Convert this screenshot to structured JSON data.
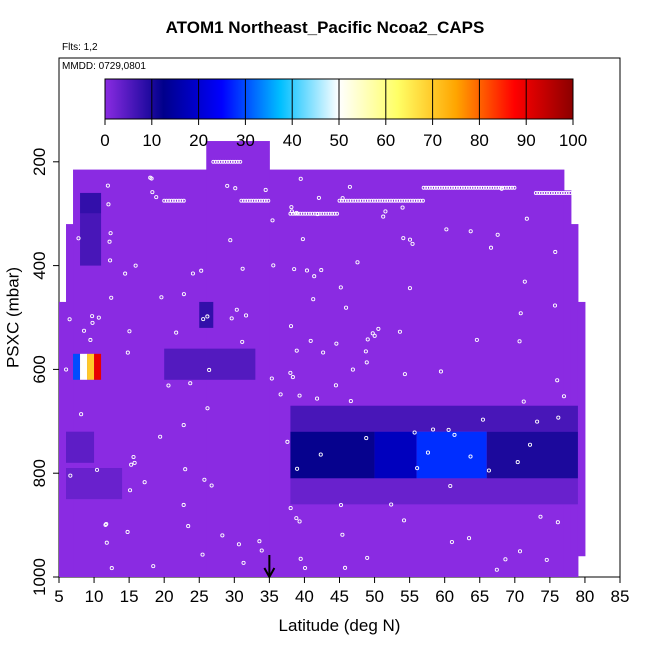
{
  "chart_data": {
    "type": "heatmap",
    "title": "ATOM1 Northeast_Pacific Ncoa2_CAPS",
    "flights_label": "Flts: 1,2",
    "dates_label": "MMDD: 0729,0801",
    "xlabel": "Latitude (deg N)",
    "ylabel": "PSXC (mbar)",
    "xlim": [
      5,
      85
    ],
    "ylim": [
      1000,
      0
    ],
    "x_ticks": [
      "5",
      "10",
      "15",
      "20",
      "25",
      "30",
      "35",
      "40",
      "45",
      "50",
      "55",
      "60",
      "65",
      "70",
      "75",
      "80",
      "85"
    ],
    "y_ticks": [
      "200",
      "400",
      "600",
      "800",
      "1000"
    ],
    "colorbar": {
      "range": [
        0,
        100
      ],
      "ticks": [
        "0",
        "10",
        "20",
        "30",
        "40",
        "50",
        "60",
        "70",
        "80",
        "90",
        "100"
      ],
      "colors": [
        "#8a2be2",
        "#00008b",
        "#0000ff",
        "#00bfff",
        "#ffffff",
        "#ffff66",
        "#ffa500",
        "#ff0000",
        "#8b0000"
      ]
    },
    "background_value": 0,
    "domain_extent": [
      {
        "lat": [
          5,
          6
        ],
        "p": [
          470,
          1000
        ]
      },
      {
        "lat": [
          6,
          7
        ],
        "p": [
          320,
          1000
        ]
      },
      {
        "lat": [
          7,
          26
        ],
        "p": [
          215,
          1000
        ]
      },
      {
        "lat": [
          26,
          35
        ],
        "p": [
          160,
          1000
        ]
      },
      {
        "lat": [
          35,
          77
        ],
        "p": [
          215,
          1000
        ]
      },
      {
        "lat": [
          77,
          78
        ],
        "p": [
          255,
          1000
        ]
      },
      {
        "lat": [
          78,
          79
        ],
        "p": [
          320,
          1000
        ]
      },
      {
        "lat": [
          79,
          80
        ],
        "p": [
          470,
          960
        ]
      }
    ],
    "cells": [
      {
        "lat": [
          8,
          11
        ],
        "p": [
          260,
          300
        ],
        "value": 8
      },
      {
        "lat": [
          8,
          11
        ],
        "p": [
          300,
          400
        ],
        "value": 6
      },
      {
        "lat": [
          7,
          8
        ],
        "p": [
          570,
          620
        ],
        "value": 30
      },
      {
        "lat": [
          8,
          9
        ],
        "p": [
          570,
          620
        ],
        "value": 50
      },
      {
        "lat": [
          9,
          10
        ],
        "p": [
          570,
          620
        ],
        "value": 70
      },
      {
        "lat": [
          10,
          11
        ],
        "p": [
          570,
          620
        ],
        "value": 90
      },
      {
        "lat": [
          25,
          27
        ],
        "p": [
          470,
          520
        ],
        "value": 8
      },
      {
        "lat": [
          20,
          33
        ],
        "p": [
          560,
          620
        ],
        "value": 5
      },
      {
        "lat": [
          6,
          10
        ],
        "p": [
          720,
          780
        ],
        "value": 4
      },
      {
        "lat": [
          6,
          14
        ],
        "p": [
          790,
          850
        ],
        "value": 3
      },
      {
        "lat": [
          38,
          79
        ],
        "p": [
          670,
          720
        ],
        "value": 6
      },
      {
        "lat": [
          38,
          50
        ],
        "p": [
          720,
          810
        ],
        "value": 12
      },
      {
        "lat": [
          50,
          56
        ],
        "p": [
          720,
          810
        ],
        "value": 18
      },
      {
        "lat": [
          56,
          66
        ],
        "p": [
          720,
          810
        ],
        "value": 28
      },
      {
        "lat": [
          66,
          79
        ],
        "p": [
          720,
          810
        ],
        "value": 10
      },
      {
        "lat": [
          38,
          79
        ],
        "p": [
          810,
          860
        ],
        "value": 3
      }
    ],
    "marker": {
      "lat": 35,
      "label": "arrow"
    }
  }
}
